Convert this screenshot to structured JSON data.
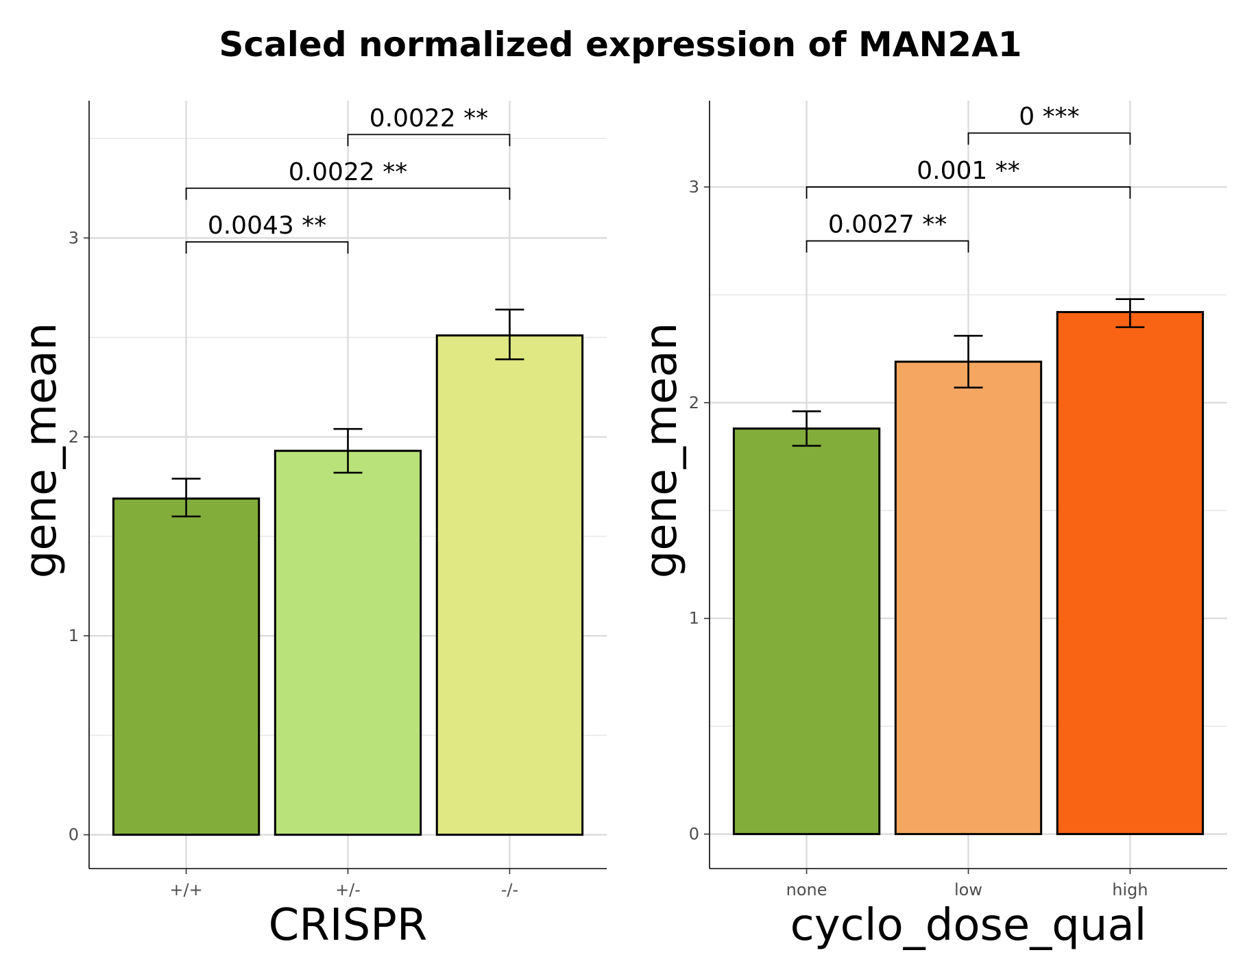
{
  "title": "Scaled normalized expression of MAN2A1",
  "chart_data": [
    {
      "type": "bar",
      "xlabel": "CRISPR",
      "ylabel": "gene_mean",
      "categories": [
        "+/+",
        "+/-",
        "-/-"
      ],
      "values": [
        1.69,
        1.93,
        2.51
      ],
      "error_low": [
        1.6,
        1.82,
        2.39
      ],
      "error_high": [
        1.79,
        2.04,
        2.64
      ],
      "colors": [
        "#82ad3b",
        "#b9e27a",
        "#dfe883"
      ],
      "ylim": [
        -0.17,
        3.69
      ],
      "yticks": [
        0,
        1,
        2,
        3
      ],
      "grid": true,
      "comparisons": [
        {
          "from": 0,
          "to": 1,
          "label": "0.0043 **",
          "y": 2.98
        },
        {
          "from": 0,
          "to": 2,
          "label": "0.0022 **",
          "y": 3.25
        },
        {
          "from": 1,
          "to": 2,
          "label": "0.0022 **",
          "y": 3.52
        }
      ]
    },
    {
      "type": "bar",
      "xlabel": "cyclo_dose_qual",
      "ylabel": "gene_mean",
      "categories": [
        "none",
        "low",
        "high"
      ],
      "values": [
        1.88,
        2.19,
        2.42
      ],
      "error_low": [
        1.8,
        2.07,
        2.35
      ],
      "error_high": [
        1.96,
        2.31,
        2.48
      ],
      "colors": [
        "#82ad3b",
        "#f5a762",
        "#f86314"
      ],
      "ylim": [
        -0.16,
        3.4
      ],
      "yticks": [
        0,
        1,
        2,
        3
      ],
      "grid": true,
      "comparisons": [
        {
          "from": 0,
          "to": 1,
          "label": "0.0027 **",
          "y": 2.75
        },
        {
          "from": 0,
          "to": 2,
          "label": "0.001 **",
          "y": 3.0
        },
        {
          "from": 1,
          "to": 2,
          "label": "0 ***",
          "y": 3.25
        }
      ]
    }
  ]
}
